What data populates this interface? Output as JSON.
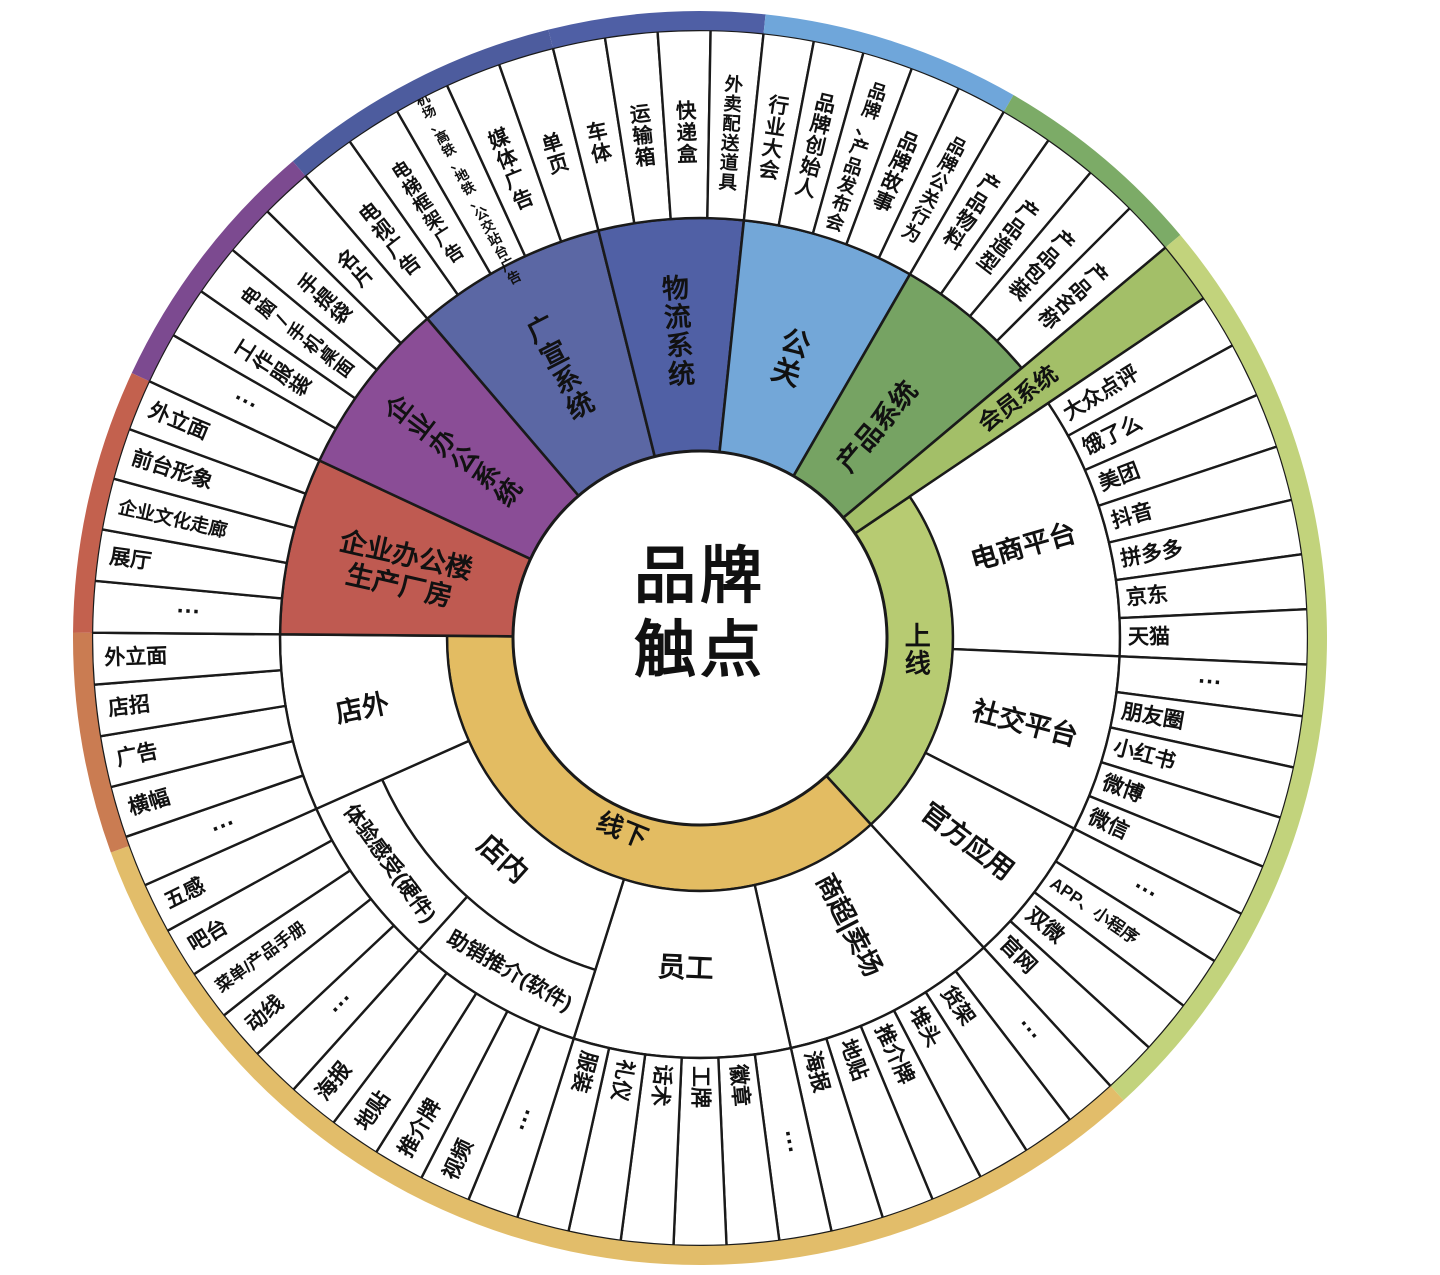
{
  "title": "品牌触点",
  "center": {
    "line1": "品牌",
    "line2": "触点"
  },
  "colors": {
    "stroke": "#1a1a1a",
    "online_arc": "#b7cb72",
    "offline_arc": "#e3bc62",
    "rim_slate": "#4d5c9e",
    "rim_indigo": "#4f5fa5",
    "rim_lightblue": "#6fa6da",
    "rim_green": "#7cab67",
    "rim_yellowgreen": "#c2d37c",
    "rim_gold": "#e2bd6a",
    "rim_orange": "#ca7c52",
    "rim_red": "#c3614e",
    "rim_purple": "#7c4a90"
  },
  "inner_arcs": [
    {
      "id": "online",
      "label": "线上",
      "a0": 56,
      "a1": 137.5,
      "color": "#b7cb72",
      "label_mode": "vstack-rev",
      "label_a": 93,
      "label_r": 218
    },
    {
      "id": "offline",
      "label": "线下",
      "a0": 137.5,
      "a1": 270.5,
      "color": "#e3bc62",
      "label_mode": "tangent",
      "label_a": 202,
      "label_r": 207
    }
  ],
  "rim": [
    {
      "a0": 319.5,
      "a1": 346,
      "color": "#4d5c9e"
    },
    {
      "a0": 346,
      "a1": 366,
      "color": "#4f5fa5"
    },
    {
      "a0": 6,
      "a1": 30,
      "color": "#6fa6da"
    },
    {
      "a0": 30,
      "a1": 50,
      "color": "#7cab67"
    },
    {
      "a0": 50,
      "a1": 137.5,
      "color": "#c2d37c"
    },
    {
      "a0": 137.5,
      "a1": 250,
      "color": "#e2bd6a"
    },
    {
      "a0": 250,
      "a1": 270.5,
      "color": "#ca7c52"
    },
    {
      "a0": 270.5,
      "a1": 295,
      "color": "#c3614e"
    },
    {
      "a0": 295,
      "a1": 319.5,
      "color": "#7c4a90"
    }
  ],
  "sectors": [
    {
      "id": "guangxuan",
      "label": "广宣系统",
      "type": "wedge",
      "color": "#5b67a4",
      "a0": 319.5,
      "a1": 346,
      "label_mode": "vstack",
      "label_r": 305,
      "label_fs": 27,
      "leaves": [
        "电视广告",
        "电梯框架广告",
        "机场、高铁、地铁、公交站台广告",
        "媒体广告",
        "单页"
      ]
    },
    {
      "id": "wuliu",
      "label": "物流系统",
      "type": "wedge",
      "color": "#5060a5",
      "a0": 346,
      "a1": 366,
      "label_mode": "vstack",
      "label_r": 308,
      "label_fs": 27,
      "leaves": [
        "车体",
        "运输箱",
        "快递盒",
        "外卖配送道具"
      ]
    },
    {
      "id": "gongguan",
      "label": "公关",
      "type": "wedge",
      "color": "#73a7d8",
      "a0": 6,
      "a1": 30,
      "label_mode": "vstack",
      "label_r": 295,
      "label_fs": 29,
      "leaves": [
        "行业大会",
        "品牌创始人",
        "品牌、产品发布会",
        "品牌故事",
        "品牌公关行为"
      ]
    },
    {
      "id": "chanpin",
      "label": "产品系统",
      "type": "wedge",
      "color": "#76a363",
      "a0": 30,
      "a1": 50,
      "label_mode": "radial-out",
      "label_r": 222,
      "label_fs": 27,
      "leaves": [
        "产品物料",
        "产品造型",
        "产品包装",
        "产品名称"
      ]
    },
    {
      "id": "huiyuan",
      "label": "会员系统",
      "type": "wedge-full",
      "color": "#a3bf68",
      "a0": 50,
      "a1": 56,
      "label_mode": "radial-out",
      "label_r": 352,
      "label_fs": 23,
      "leaves": []
    },
    {
      "id": "dianshang",
      "label": "电商平台",
      "type": "ring",
      "a0": 56,
      "a1": 92.5,
      "label_mode": "radial-out",
      "label_r": 282,
      "label_fs": 27,
      "leaves": [
        "大众点评",
        "饿了么",
        "美团",
        "抖音",
        "拼多多",
        "京东",
        "天猫"
      ]
    },
    {
      "id": "shejiao",
      "label": "社交平台",
      "type": "ring",
      "a0": 92.5,
      "a1": 117,
      "label_mode": "radial-out",
      "label_r": 282,
      "label_fs": 27,
      "leaves": [
        "···",
        "朋友圈",
        "小红书",
        "微博",
        "微信"
      ]
    },
    {
      "id": "guanfang",
      "label": "官方应用",
      "type": "ring",
      "a0": 117,
      "a1": 137.5,
      "label_mode": "radial-out",
      "label_r": 282,
      "label_fs": 27,
      "leaves": [
        "···",
        "APP、小程序",
        "双微",
        "官网"
      ]
    },
    {
      "id": "shangchao",
      "label": "商超|卖场",
      "type": "ring",
      "a0": 137.5,
      "a1": 167.5,
      "label_mode": "radial-out",
      "label_r": 268,
      "label_fs": 26,
      "leaves": [
        "···",
        "货架",
        "堆头",
        "推介牌",
        "地贴",
        "海报"
      ]
    },
    {
      "id": "yuangong",
      "label": "员工",
      "type": "ring",
      "a0": 167.5,
      "a1": 197.5,
      "label_mode": "tangent",
      "label_r": 330,
      "label_fs": 28,
      "leaves": [
        "···",
        "徽章",
        "工牌",
        "话术",
        "礼仪",
        "服装"
      ]
    },
    {
      "id": "diannei",
      "label": "店内",
      "type": "ring-split",
      "split_r": 348,
      "a0": 197.5,
      "a1": 246,
      "label_mode": "tangent",
      "label_r": 296,
      "label_fs": 28,
      "subs": [
        {
          "id": "zhuxiao",
          "label": "助销推介(软件)",
          "a0": 197.5,
          "a1": 222,
          "label_mode": "tangent",
          "label_r": 384,
          "label_fs": 21,
          "leaves": [
            "···",
            "视频",
            "推介牌",
            "地贴",
            "海报"
          ]
        },
        {
          "id": "tiyan",
          "label": "体验感受(硬件)",
          "a0": 222,
          "a1": 246,
          "label_mode": "tangent",
          "label_r": 384,
          "label_fs": 21,
          "leaves": [
            "···",
            "动线",
            "菜单/产品手册",
            "吧台",
            "五感"
          ]
        }
      ],
      "leaves": []
    },
    {
      "id": "dianwai",
      "label": "店外",
      "type": "ring",
      "a0": 246,
      "a1": 270.5,
      "label_mode": "radial-mid-in",
      "label_r": 345,
      "label_fs": 27,
      "leaves": [
        "···",
        "横幅",
        "广告",
        "店招",
        "外立面"
      ]
    },
    {
      "id": "loufang",
      "label": "企业办公楼\n生产厂房",
      "type": "wedge",
      "color": "#bf5a51",
      "a0": 270.5,
      "a1": 295,
      "label_mode": "radial-mid-in",
      "label_r": 305,
      "label_fs": 27,
      "leaves": [
        "···",
        "展厅",
        "企业文化走廊",
        "前台形象",
        "外立面"
      ]
    },
    {
      "id": "bangong",
      "label": "企业办公系统",
      "type": "wedge",
      "color": "#8a4d96",
      "a0": 295,
      "a1": 319.5,
      "label_mode": "vstack",
      "label_r": 310,
      "label_fs": 26,
      "leaves": [
        "···",
        "工作服装",
        "电脑/手机桌面",
        "手提袋",
        "名片"
      ]
    }
  ],
  "geometry_note": "angles are compass degrees clockwise from 12 o'clock"
}
